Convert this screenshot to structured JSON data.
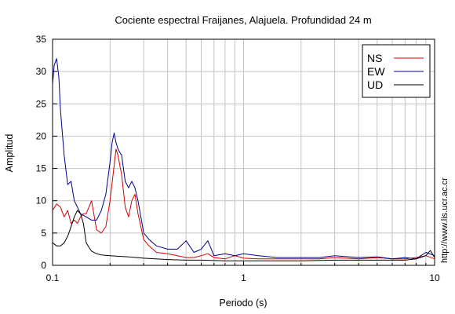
{
  "chart_data": {
    "type": "line",
    "title": "Cociente espectral Fraijanes, Alajuela. Profundidad 24 m",
    "xlabel": "Periodo (s)",
    "ylabel": "Amplitud",
    "x_scale": "log",
    "xlim": [
      0.1,
      10
    ],
    "ylim": [
      0,
      35
    ],
    "x_ticks": [
      0.1,
      1,
      10
    ],
    "x_tick_labels": [
      "0.1",
      "1",
      "10"
    ],
    "y_ticks": [
      0,
      5,
      10,
      15,
      20,
      25,
      30,
      35
    ],
    "y_tick_labels": [
      "0",
      "5",
      "10",
      "15",
      "20",
      "25",
      "30",
      "35"
    ],
    "grid": true,
    "legend_position": "top-right",
    "credit": "http://www.lis.ucr.ac.cr",
    "series": [
      {
        "name": "NS",
        "color": "#d40000",
        "x": [
          0.1,
          0.105,
          0.11,
          0.115,
          0.12,
          0.125,
          0.13,
          0.135,
          0.14,
          0.145,
          0.15,
          0.155,
          0.16,
          0.17,
          0.18,
          0.19,
          0.2,
          0.21,
          0.215,
          0.22,
          0.23,
          0.24,
          0.25,
          0.26,
          0.27,
          0.28,
          0.3,
          0.32,
          0.35,
          0.4,
          0.45,
          0.5,
          0.55,
          0.6,
          0.65,
          0.7,
          0.8,
          0.9,
          1,
          1.2,
          1.5,
          2,
          2.5,
          3,
          4,
          5,
          6,
          7,
          8,
          9,
          10
        ],
        "y": [
          8.5,
          9.5,
          9,
          7.5,
          8.5,
          6.5,
          7,
          6.5,
          7.5,
          8,
          8,
          9,
          10,
          5.5,
          5,
          6,
          10,
          15.5,
          18,
          17,
          14,
          9,
          7.5,
          10,
          11,
          8,
          4,
          3,
          2,
          1.8,
          1.5,
          1.2,
          1.2,
          1.5,
          1.8,
          1.2,
          1,
          1.5,
          1.1,
          1,
          1,
          1,
          1,
          1.2,
          1,
          1.2,
          1,
          1,
          1.2,
          1.5,
          1
        ]
      },
      {
        "name": "EW",
        "color": "#00008b",
        "x": [
          0.1,
          0.102,
          0.105,
          0.108,
          0.11,
          0.115,
          0.12,
          0.125,
          0.13,
          0.135,
          0.14,
          0.15,
          0.16,
          0.17,
          0.18,
          0.19,
          0.2,
          0.205,
          0.21,
          0.215,
          0.22,
          0.23,
          0.24,
          0.25,
          0.26,
          0.27,
          0.28,
          0.3,
          0.32,
          0.35,
          0.4,
          0.45,
          0.5,
          0.55,
          0.6,
          0.65,
          0.7,
          0.8,
          0.9,
          1,
          1.2,
          1.5,
          2,
          2.5,
          3,
          4,
          5,
          6,
          7,
          8,
          9,
          10
        ],
        "y": [
          28,
          31,
          32,
          29,
          24,
          17,
          12.5,
          13,
          10,
          9,
          8,
          7.5,
          7,
          7,
          8.5,
          11,
          16,
          19,
          20.5,
          19,
          18,
          17,
          13,
          12,
          13,
          12,
          10,
          5,
          4,
          3,
          2.5,
          2.5,
          3.8,
          2,
          2.5,
          3.8,
          1.5,
          1.8,
          1.5,
          1.8,
          1.5,
          1.2,
          1.2,
          1.2,
          1.5,
          1.2,
          1.3,
          1,
          1.2,
          1,
          2,
          1.5
        ]
      },
      {
        "name": "UD",
        "color": "#000000",
        "x": [
          0.1,
          0.105,
          0.11,
          0.115,
          0.12,
          0.125,
          0.13,
          0.135,
          0.14,
          0.145,
          0.15,
          0.155,
          0.16,
          0.17,
          0.18,
          0.2,
          0.25,
          0.3,
          0.4,
          0.5,
          0.6,
          0.8,
          1,
          1.5,
          2,
          3,
          4,
          5,
          6,
          7,
          8,
          9,
          9.5,
          10
        ],
        "y": [
          3.5,
          3,
          3,
          3.5,
          4.5,
          6,
          7.5,
          8.5,
          8,
          6.5,
          3.5,
          2.8,
          2.2,
          1.8,
          1.6,
          1.5,
          1.3,
          1.1,
          0.9,
          0.8,
          0.8,
          0.7,
          0.7,
          0.7,
          0.7,
          0.8,
          0.8,
          0.8,
          0.8,
          0.8,
          1,
          1.5,
          2.3,
          1.2
        ]
      }
    ]
  }
}
